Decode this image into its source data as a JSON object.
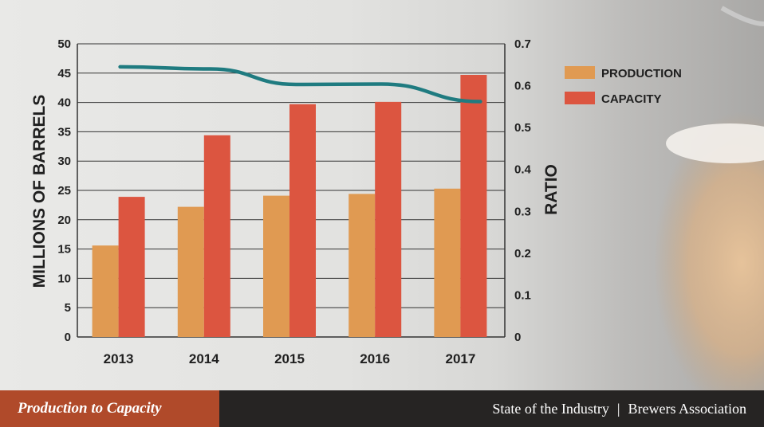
{
  "chart_data": {
    "type": "bar",
    "categories": [
      "2013",
      "2014",
      "2015",
      "2016",
      "2017"
    ],
    "series": [
      {
        "name": "PRODUCTION",
        "type": "bar",
        "axis": "left",
        "values": [
          15.6,
          22.2,
          24.1,
          24.4,
          25.3
        ],
        "color": "#e09a52"
      },
      {
        "name": "CAPACITY",
        "type": "bar",
        "axis": "left",
        "values": [
          23.9,
          34.4,
          39.7,
          40.1,
          44.7
        ],
        "color": "#dc5540"
      },
      {
        "name": "",
        "type": "line",
        "axis": "right",
        "values": [
          0.645,
          0.64,
          0.603,
          0.604,
          0.562
        ],
        "color": "#1f7b80"
      }
    ],
    "ylabel": "MILLIONS OF BARRELS",
    "ylabel_right": "RATIO",
    "ylim": [
      0,
      50
    ],
    "ylim_right": [
      0,
      0.7
    ],
    "yticks": [
      "0",
      "5",
      "10",
      "15",
      "20",
      "25",
      "30",
      "35",
      "40",
      "45",
      "50"
    ],
    "yticks_right": [
      "0",
      "0.1",
      "0.2",
      "0.3",
      "0.4",
      "0.5",
      "0.6",
      "0.7"
    ],
    "grid": true,
    "legend_position": "top-right"
  },
  "footer": {
    "title": "Production to Capacity",
    "source_part1": "State of the Industry",
    "separator": "|",
    "source_part2": "Brewers Association"
  },
  "colors": {
    "footer_left_bg": "#b04a2a",
    "footer_right_bg": "#262423"
  }
}
